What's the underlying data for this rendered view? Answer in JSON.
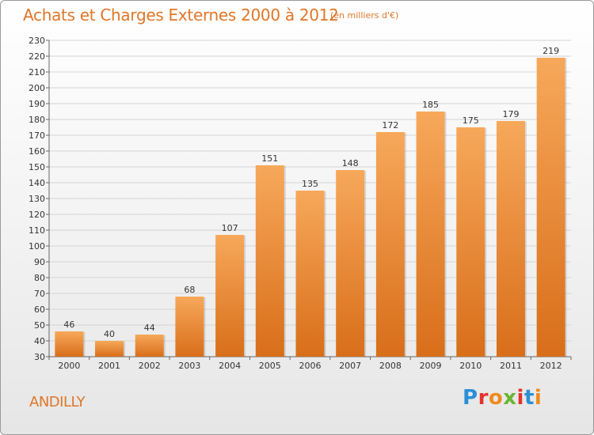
{
  "header": {
    "title": "Achats et Charges Externes 2000 à 2012",
    "subtitle": "(en milliers d'€)"
  },
  "footer": {
    "place": "ANDILLY",
    "brand": "Proxiti",
    "brand_colors": [
      "#2c8fd6",
      "#e5322d",
      "#f08a1d",
      "#6bb531",
      "#e5322d",
      "#2c8fd6",
      "#f08a1d"
    ]
  },
  "colors": {
    "bar_top": "#f7a85a",
    "bar_bottom": "#d86e1a",
    "grid": "#d4d4d4",
    "text": "#333333",
    "accent": "#e07628"
  },
  "chart_data": {
    "type": "bar",
    "categories": [
      "2000",
      "2001",
      "2002",
      "2003",
      "2004",
      "2005",
      "2006",
      "2007",
      "2008",
      "2009",
      "2010",
      "2011",
      "2012"
    ],
    "values": [
      46,
      40,
      44,
      68,
      107,
      151,
      135,
      148,
      172,
      185,
      175,
      179,
      219
    ],
    "ylim": [
      30,
      230
    ],
    "ytick_step": 10,
    "grid": true
  }
}
